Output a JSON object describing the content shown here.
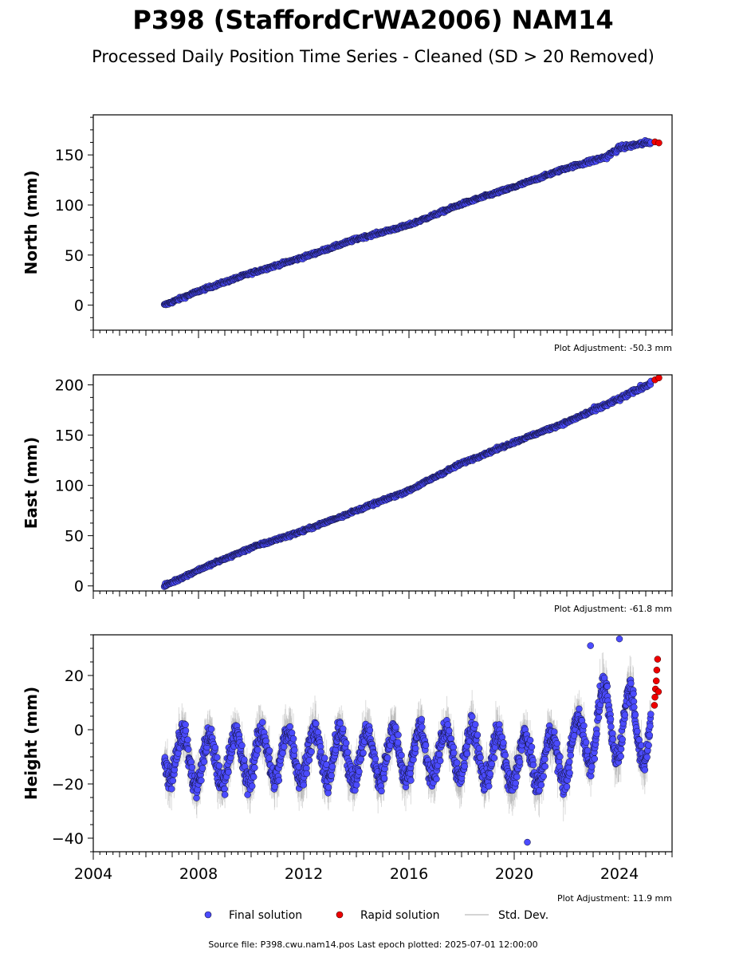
{
  "figure": {
    "title": "P398 (StaffordCrWA2006) NAM14",
    "subtitle": "Processed Daily Position Time Series - Cleaned (SD > 20 Removed)",
    "source_note": "Source file: P398.cwu.nam14.pos  Last epoch plotted: 2025-07-01 12:00:00",
    "colors": {
      "final": "#4b4bff",
      "rapid": "#ee0000",
      "std": "#999999",
      "edge": "#111133"
    }
  },
  "legend": {
    "final": "Final solution",
    "rapid": "Rapid solution",
    "std": "Std. Dev."
  },
  "chart_data": [
    {
      "type": "scatter",
      "ylabel": "North (mm)",
      "adjustment": "Plot Adjustment: -50.3 mm",
      "xlim": [
        2004.0,
        2026.0
      ],
      "ylim": [
        -25,
        190
      ],
      "yticks": [
        0,
        50,
        100,
        150
      ],
      "series": [
        {
          "name": "Final solution",
          "x": [
            2006.7,
            2008,
            2010,
            2012,
            2014,
            2016,
            2018,
            2020,
            2022,
            2023.5,
            2024,
            2025.2
          ],
          "y": [
            0,
            14,
            32,
            48,
            66,
            80,
            101,
            118,
            137,
            148,
            157,
            163
          ]
        },
        {
          "name": "Rapid solution",
          "x": [
            2025.35,
            2025.5
          ],
          "y": [
            163,
            162
          ]
        }
      ]
    },
    {
      "type": "scatter",
      "ylabel": "East (mm)",
      "adjustment": "Plot Adjustment: -61.8 mm",
      "xlim": [
        2004.0,
        2026.0
      ],
      "ylim": [
        -5,
        210
      ],
      "yticks": [
        0,
        50,
        100,
        150,
        200
      ],
      "series": [
        {
          "name": "Final solution",
          "x": [
            2006.7,
            2008,
            2010,
            2012,
            2014,
            2016,
            2018,
            2020,
            2022,
            2024,
            2025.2
          ],
          "y": [
            0,
            16,
            38,
            55,
            75,
            95,
            122,
            143,
            163,
            186,
            202
          ]
        },
        {
          "name": "Rapid solution",
          "x": [
            2025.35,
            2025.5
          ],
          "y": [
            205,
            207
          ]
        }
      ]
    },
    {
      "type": "scatter",
      "ylabel": "Height (mm)",
      "adjustment": "Plot Adjustment: 11.9 mm",
      "xlim": [
        2004.0,
        2026.0
      ],
      "ylim": [
        -45,
        35
      ],
      "yticks": [
        -40,
        -20,
        0,
        20
      ],
      "xticks": [
        2004,
        2008,
        2012,
        2016,
        2020,
        2024
      ],
      "annual_amplitude_mm": 9,
      "series": [
        {
          "name": "Final solution",
          "x": [
            2006.7,
            2008,
            2010,
            2012,
            2014,
            2016,
            2018,
            2020,
            2022,
            2023,
            2024,
            2025.2
          ],
          "y": [
            -8,
            -12,
            -10,
            -9,
            -10,
            -9,
            -8,
            -12,
            -10,
            2,
            3,
            0
          ],
          "extremes": [
            [
              2020.5,
              -41.5
            ],
            [
              2022.9,
              31
            ],
            [
              2024.0,
              33.5
            ]
          ]
        },
        {
          "name": "Rapid solution",
          "x": [
            2025.33,
            2025.35,
            2025.37,
            2025.4,
            2025.42,
            2025.45,
            2025.48
          ],
          "y": [
            9,
            12,
            15,
            18,
            22,
            26,
            14
          ]
        }
      ]
    }
  ]
}
